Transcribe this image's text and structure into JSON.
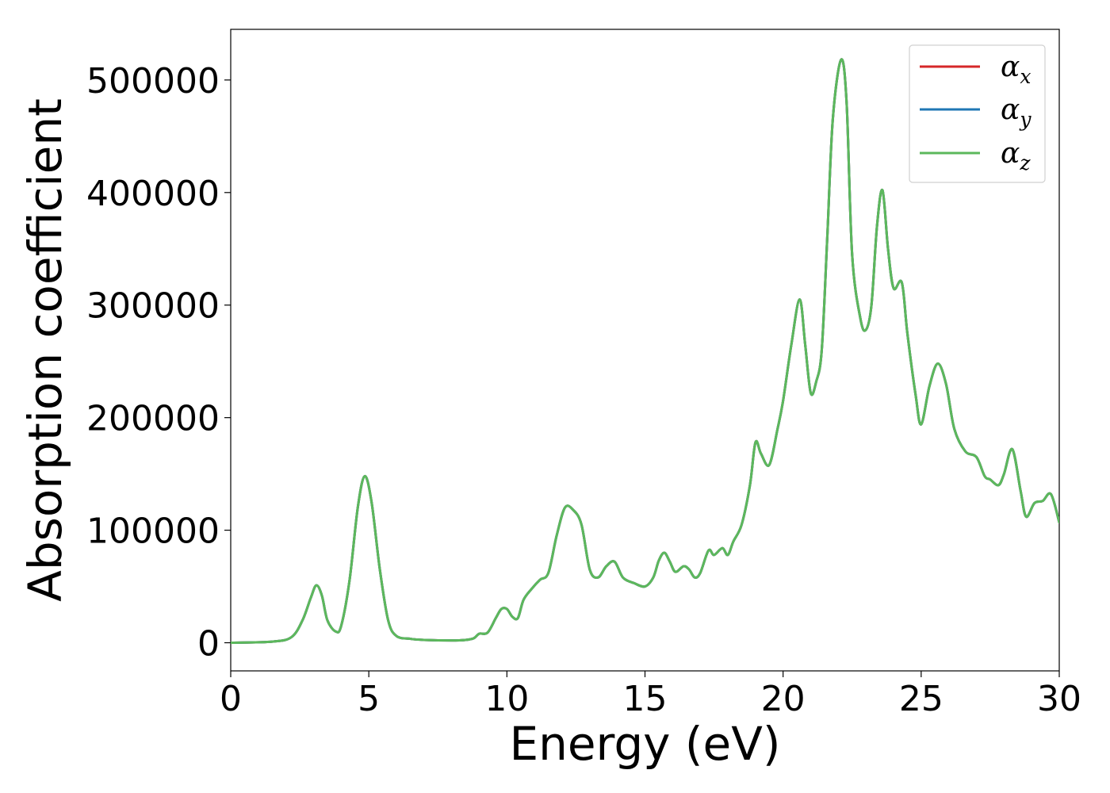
{
  "chart_data": {
    "type": "line",
    "title": "",
    "xlabel": "Energy (eV)",
    "ylabel": "Absorption coefficient",
    "xlim": [
      0,
      30
    ],
    "ylim": [
      -25000,
      545000
    ],
    "xticks": [
      0,
      5,
      10,
      15,
      20,
      25,
      30
    ],
    "xtick_labels": [
      "0",
      "5",
      "10",
      "15",
      "20",
      "25",
      "30"
    ],
    "yticks": [
      0,
      100000,
      200000,
      300000,
      400000,
      500000
    ],
    "ytick_labels": [
      "0",
      "100000",
      "200000",
      "300000",
      "400000",
      "500000"
    ],
    "grid": false,
    "legend_position": "top-right",
    "x": [
      0,
      1.5,
      2.2,
      2.6,
      2.9,
      3.1,
      3.3,
      3.5,
      3.8,
      4.0,
      4.3,
      4.6,
      4.85,
      5.1,
      5.4,
      5.7,
      6.0,
      6.5,
      7.0,
      8.0,
      8.5,
      8.8,
      9.0,
      9.3,
      9.6,
      9.8,
      10.0,
      10.2,
      10.4,
      10.6,
      10.9,
      11.2,
      11.5,
      11.8,
      12.1,
      12.4,
      12.7,
      13.0,
      13.3,
      13.6,
      13.9,
      14.2,
      14.6,
      15.0,
      15.3,
      15.5,
      15.7,
      15.9,
      16.1,
      16.4,
      16.6,
      16.8,
      17.0,
      17.3,
      17.5,
      17.8,
      18.0,
      18.2,
      18.5,
      18.8,
      19.0,
      19.2,
      19.5,
      19.8,
      20.0,
      20.3,
      20.6,
      20.8,
      21.0,
      21.2,
      21.4,
      21.6,
      21.8,
      22.1,
      22.3,
      22.5,
      22.8,
      23.0,
      23.2,
      23.4,
      23.6,
      23.8,
      24.0,
      24.3,
      24.5,
      24.8,
      25.0,
      25.3,
      25.6,
      25.9,
      26.2,
      26.6,
      27.0,
      27.3,
      27.5,
      27.8,
      28.0,
      28.3,
      28.6,
      28.8,
      29.1,
      29.4,
      29.7,
      30.0
    ],
    "series": [
      {
        "name": "α_x",
        "color": "#d62728",
        "values": [
          0,
          1000,
          5000,
          20000,
          40000,
          51000,
          42000,
          20000,
          10000,
          15000,
          55000,
          120000,
          148000,
          125000,
          65000,
          20000,
          6000,
          3500,
          2500,
          2000,
          2500,
          4000,
          8000,
          9000,
          22000,
          30000,
          30000,
          23000,
          22000,
          38000,
          48000,
          56000,
          62000,
          95000,
          120000,
          118000,
          105000,
          65000,
          58000,
          68000,
          72000,
          58000,
          53000,
          50000,
          58000,
          73000,
          80000,
          72000,
          63000,
          68000,
          65000,
          58000,
          62000,
          82000,
          78000,
          84000,
          78000,
          90000,
          105000,
          140000,
          178000,
          168000,
          158000,
          190000,
          215000,
          265000,
          305000,
          265000,
          222000,
          232000,
          260000,
          360000,
          465000,
          518000,
          480000,
          345000,
          288000,
          278000,
          300000,
          370000,
          402000,
          350000,
          315000,
          320000,
          275000,
          220000,
          194000,
          228000,
          248000,
          230000,
          190000,
          170000,
          165000,
          148000,
          145000,
          140000,
          150000,
          172000,
          135000,
          112000,
          124000,
          126000,
          132000,
          107000
        ]
      },
      {
        "name": "α_y",
        "color": "#1f77b4",
        "values": [
          0,
          1000,
          5000,
          20000,
          40000,
          51000,
          42000,
          20000,
          10000,
          15000,
          55000,
          120000,
          148000,
          125000,
          65000,
          20000,
          6000,
          3500,
          2500,
          2000,
          2500,
          4000,
          8000,
          9000,
          22000,
          30000,
          30000,
          23000,
          22000,
          38000,
          48000,
          56000,
          62000,
          95000,
          120000,
          118000,
          105000,
          65000,
          58000,
          68000,
          72000,
          58000,
          53000,
          50000,
          58000,
          73000,
          80000,
          72000,
          63000,
          68000,
          65000,
          58000,
          62000,
          82000,
          78000,
          84000,
          78000,
          90000,
          105000,
          140000,
          178000,
          168000,
          158000,
          190000,
          215000,
          265000,
          305000,
          265000,
          222000,
          232000,
          260000,
          360000,
          465000,
          518000,
          480000,
          345000,
          288000,
          278000,
          300000,
          370000,
          402000,
          350000,
          315000,
          320000,
          275000,
          220000,
          194000,
          228000,
          248000,
          230000,
          190000,
          170000,
          165000,
          148000,
          145000,
          140000,
          150000,
          172000,
          135000,
          112000,
          124000,
          126000,
          132000,
          107000
        ]
      },
      {
        "name": "α_z",
        "color": "#5cb85c",
        "values": [
          0,
          1000,
          5000,
          20000,
          40000,
          51000,
          42000,
          20000,
          10000,
          15000,
          55000,
          120000,
          148000,
          125000,
          65000,
          20000,
          6000,
          3500,
          2500,
          2000,
          2500,
          4000,
          8000,
          9000,
          22000,
          30000,
          30000,
          23000,
          22000,
          38000,
          48000,
          56000,
          62000,
          95000,
          120000,
          118000,
          105000,
          65000,
          58000,
          68000,
          72000,
          58000,
          53000,
          50000,
          58000,
          73000,
          80000,
          72000,
          63000,
          68000,
          65000,
          58000,
          62000,
          82000,
          78000,
          84000,
          78000,
          90000,
          105000,
          140000,
          178000,
          168000,
          158000,
          190000,
          215000,
          265000,
          305000,
          265000,
          222000,
          232000,
          260000,
          360000,
          465000,
          518000,
          480000,
          345000,
          288000,
          278000,
          300000,
          370000,
          402000,
          350000,
          315000,
          320000,
          275000,
          220000,
          194000,
          228000,
          248000,
          230000,
          190000,
          170000,
          165000,
          148000,
          145000,
          140000,
          150000,
          172000,
          135000,
          112000,
          124000,
          126000,
          132000,
          107000
        ]
      }
    ],
    "legend": [
      {
        "symbol": "α",
        "sub": "x",
        "color": "#d62728"
      },
      {
        "symbol": "α",
        "sub": "y",
        "color": "#1f77b4"
      },
      {
        "symbol": "α",
        "sub": "z",
        "color": "#5cb85c"
      }
    ]
  }
}
